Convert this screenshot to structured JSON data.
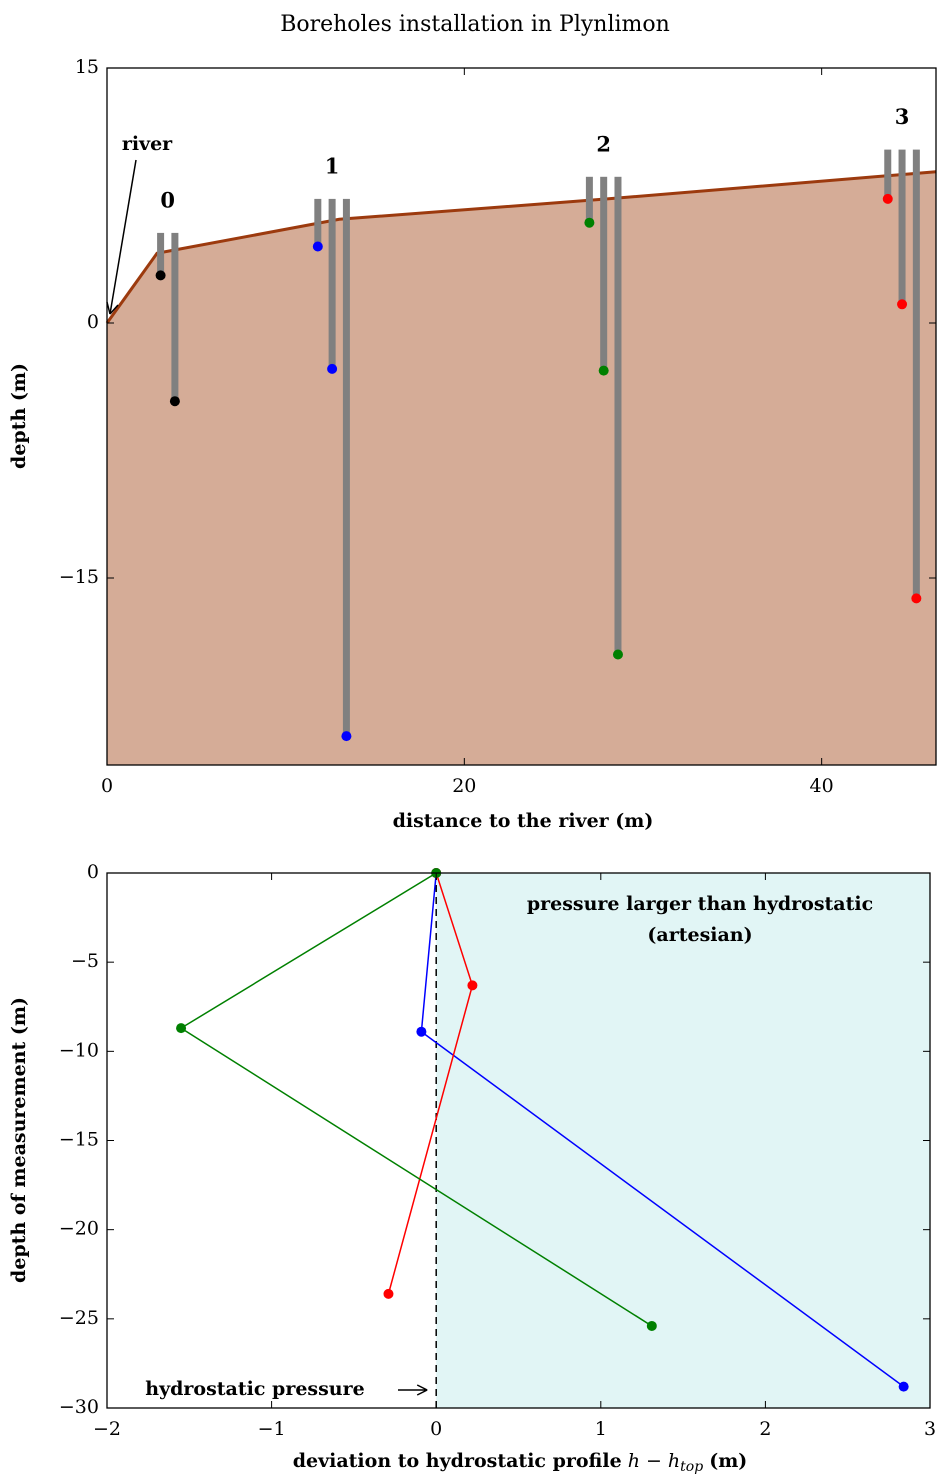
{
  "chart_data": [
    {
      "type": "boreholes",
      "title": "Boreholes installation in Plynlimon",
      "xlabel": "distance to the river (m)",
      "ylabel": "depth (m)",
      "xlim": [
        0,
        46.4
      ],
      "ylim": [
        -26,
        15
      ],
      "xticks": [
        0,
        20,
        40
      ],
      "yticks": [
        15,
        0,
        {
          "value": -15,
          "label": "−15"
        }
      ],
      "ground": {
        "x": [
          0,
          2.8,
          13,
          28,
          46.4
        ],
        "y": [
          0,
          4.1,
          6.1,
          7.3,
          8.9
        ],
        "color": "#9c3a0e",
        "fill": "#d5ac97"
      },
      "pipe_color": "#808080",
      "boreholes": [
        {
          "label": "0",
          "color": "#000000",
          "top": 5.3,
          "x": [
            3.0,
            3.8
          ],
          "depths": [
            2.8,
            -4.6
          ]
        },
        {
          "label": "1",
          "color": "#0000ff",
          "top": 7.3,
          "x": [
            11.8,
            12.6,
            13.4
          ],
          "depths": [
            4.5,
            -2.7,
            -24.3
          ]
        },
        {
          "label": "2",
          "color": "#008000",
          "top": 8.6,
          "x": [
            27.0,
            27.8,
            28.6
          ],
          "depths": [
            5.9,
            -2.8,
            -19.5
          ]
        },
        {
          "label": "3",
          "color": "#ff0000",
          "top": 10.2,
          "x": [
            43.7,
            44.5,
            45.3
          ],
          "depths": [
            7.3,
            1.1,
            -16.2
          ]
        }
      ],
      "annotation": {
        "text": "river",
        "x": 0,
        "y": 0
      }
    },
    {
      "type": "line",
      "xlabel": [
        "deviation to hydrostatic profile",
        "h − h",
        "top",
        "(m)"
      ],
      "ylabel": "depth of measurement (m)",
      "xlim": [
        -2,
        3
      ],
      "ylim": [
        -30,
        0
      ],
      "xticks": [
        {
          "value": -2,
          "label": "−2"
        },
        {
          "value": -1,
          "label": "−1"
        },
        0,
        1,
        2,
        3
      ],
      "yticks": [
        0,
        {
          "value": -5,
          "label": "−5"
        },
        {
          "value": -10,
          "label": "−10"
        },
        {
          "value": -15,
          "label": "−15"
        },
        {
          "value": -20,
          "label": "−20"
        },
        {
          "value": -25,
          "label": "−25"
        },
        {
          "value": -30,
          "label": "−30"
        }
      ],
      "shade": {
        "from": 0,
        "color": "#e1f5f5"
      },
      "annotations": [
        "pressure larger than hydrostatic",
        "(artesian)"
      ],
      "reference": {
        "x": 0,
        "label": "hydrostatic pressure"
      },
      "series": [
        {
          "color": "#0000ff",
          "x": [
            0,
            -0.09,
            2.84
          ],
          "values": [
            0,
            -8.9,
            -28.8
          ]
        },
        {
          "color": "#ff0000",
          "x": [
            0,
            0.22,
            -0.29
          ],
          "values": [
            0,
            -6.3,
            -23.6
          ]
        },
        {
          "color": "#008000",
          "x": [
            0,
            -1.55,
            1.31
          ],
          "values": [
            0,
            -8.7,
            -25.4
          ]
        }
      ]
    }
  ]
}
